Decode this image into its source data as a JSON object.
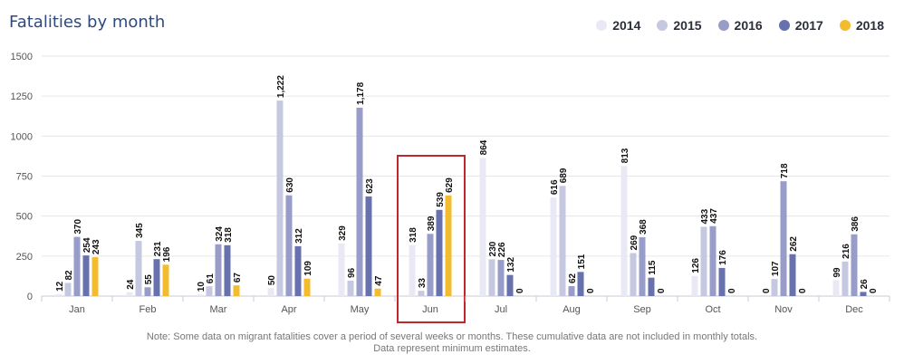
{
  "chart_data": {
    "type": "bar",
    "title": "Fatalities by month",
    "categories": [
      "Jan",
      "Feb",
      "Mar",
      "Apr",
      "May",
      "Jun",
      "Jul",
      "Aug",
      "Sep",
      "Oct",
      "Nov",
      "Dec"
    ],
    "series": [
      {
        "name": "2014",
        "color": "#e9e9f5",
        "values": [
          12,
          24,
          10,
          50,
          329,
          318,
          864,
          616,
          813,
          126,
          0,
          99
        ]
      },
      {
        "name": "2015",
        "color": "#c6c8e2",
        "values": [
          82,
          345,
          61,
          1222,
          96,
          33,
          230,
          689,
          269,
          433,
          107,
          216
        ]
      },
      {
        "name": "2016",
        "color": "#979cc9",
        "values": [
          370,
          55,
          324,
          630,
          1178,
          389,
          226,
          62,
          368,
          437,
          718,
          386
        ]
      },
      {
        "name": "2017",
        "color": "#6671ae",
        "values": [
          254,
          231,
          318,
          312,
          623,
          539,
          132,
          151,
          115,
          176,
          262,
          26
        ]
      },
      {
        "name": "2018",
        "color": "#f2bc2e",
        "values": [
          243,
          196,
          67,
          109,
          47,
          629,
          0,
          0,
          0,
          0,
          0,
          0
        ]
      }
    ],
    "data_labels": [
      [
        "12",
        "82",
        "370",
        "254",
        "243"
      ],
      [
        "24",
        "345",
        "55",
        "231",
        "196"
      ],
      [
        "10",
        "61",
        "324",
        "318",
        "67"
      ],
      [
        "50",
        "1,222",
        "630",
        "312",
        "109"
      ],
      [
        "329",
        "96",
        "1,178",
        "623",
        "47"
      ],
      [
        "318",
        "33",
        "389",
        "539",
        "629"
      ],
      [
        "864",
        "230",
        "226",
        "132",
        "0"
      ],
      [
        "616",
        "689",
        "62",
        "151",
        "0"
      ],
      [
        "813",
        "269",
        "368",
        "115",
        "0"
      ],
      [
        "126",
        "433",
        "437",
        "176",
        "0"
      ],
      [
        "0",
        "107",
        "718",
        "262",
        "0"
      ],
      [
        "99",
        "216",
        "386",
        "26",
        "0"
      ]
    ],
    "yticks": [
      "0",
      "250",
      "500",
      "750",
      "1000",
      "1250",
      "1500"
    ],
    "ytick_values": [
      0,
      250,
      500,
      750,
      1000,
      1250,
      1500
    ],
    "ylim": [
      0,
      1500
    ],
    "grid": true,
    "legend": "top-right",
    "highlight_category": "Jun",
    "highlight_color": "#c0272d"
  },
  "note": {
    "line1": "Note: Some data on migrant fatalities cover a period of several weeks or months. These cumulative data are not included in monthly totals.",
    "line2": "Data represent minimum estimates."
  }
}
